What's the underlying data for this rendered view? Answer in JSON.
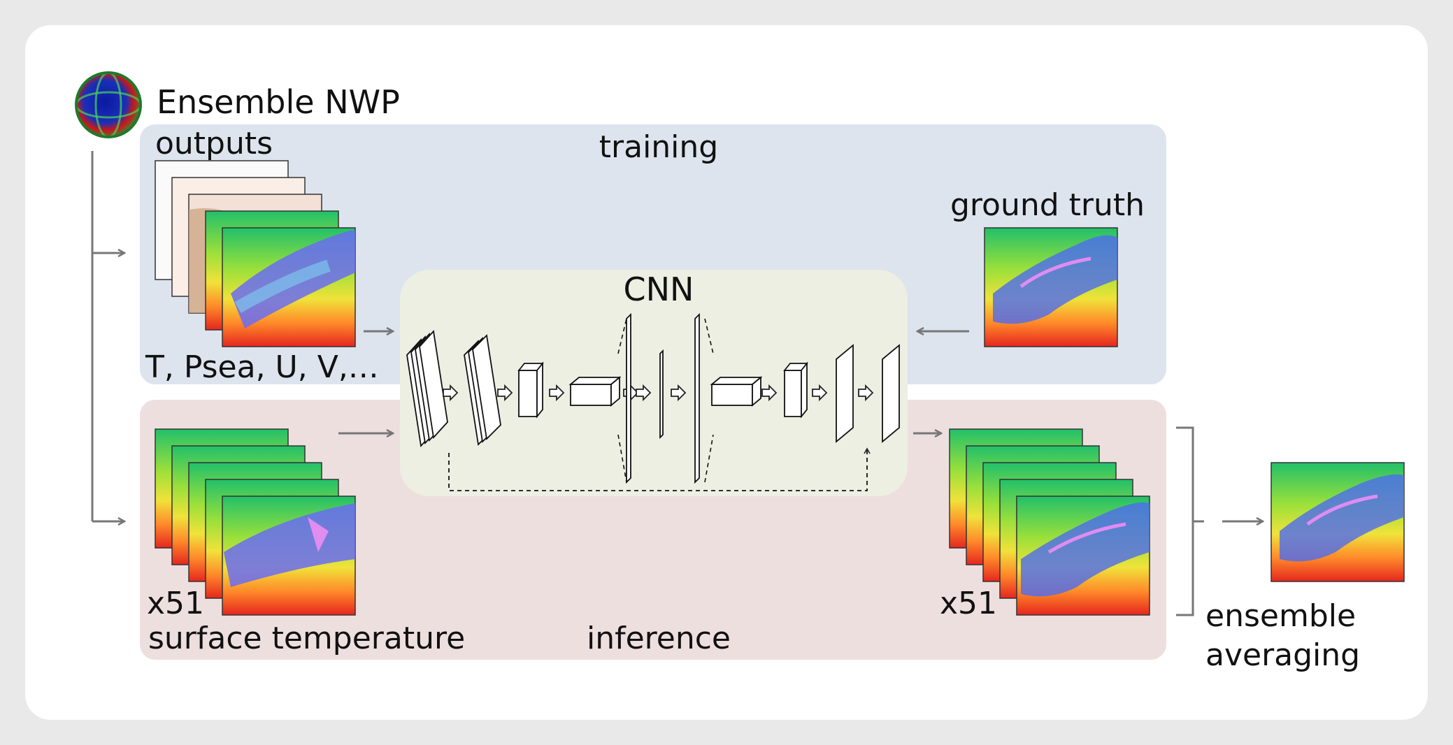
{
  "source": {
    "title": "Ensemble NWP",
    "outputs_label": "outputs",
    "variables_label": "T, Psea, U, V,…",
    "member_count": "x51",
    "surface_label": "surface temperature"
  },
  "panels": {
    "training_label": "training",
    "inference_label": "inference",
    "ground_truth_label": "ground truth"
  },
  "model": {
    "label": "CNN"
  },
  "output": {
    "member_count": "x51",
    "averaging_label_line1": "ensemble",
    "averaging_label_line2": "averaging"
  },
  "colors": {
    "training_panel": "#dde4ee",
    "inference_panel": "#eedfdf",
    "cnn_panel": "#ecefe2",
    "arrow": "#777777"
  }
}
